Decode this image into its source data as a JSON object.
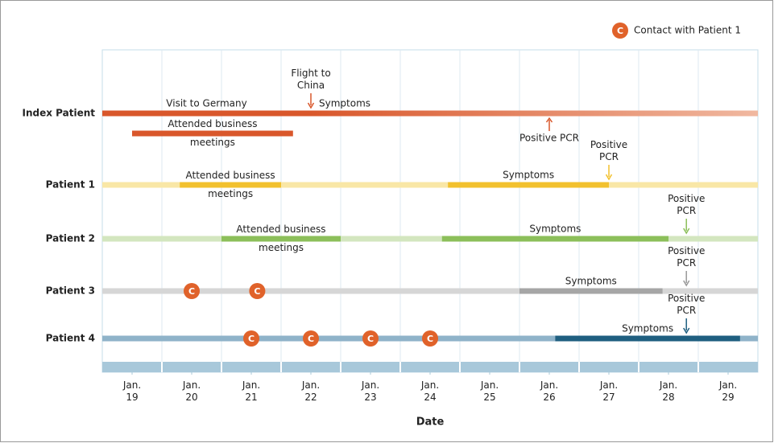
{
  "chart_data": {
    "type": "timeline",
    "x_label": "Date",
    "xlim": [
      18.5,
      29.5
    ],
    "xticks": [
      {
        "value": 19,
        "label": "Jan. 19"
      },
      {
        "value": 20,
        "label": "Jan. 20"
      },
      {
        "value": 21,
        "label": "Jan. 21"
      },
      {
        "value": 22,
        "label": "Jan. 22"
      },
      {
        "value": 23,
        "label": "Jan. 23"
      },
      {
        "value": 24,
        "label": "Jan. 24"
      },
      {
        "value": 25,
        "label": "Jan. 25"
      },
      {
        "value": 26,
        "label": "Jan. 26"
      },
      {
        "value": 27,
        "label": "Jan. 27"
      },
      {
        "value": 28,
        "label": "Jan. 28"
      },
      {
        "value": 29,
        "label": "Jan. 29"
      }
    ],
    "legend": {
      "label": "Contact with Patient 1",
      "marker": "C",
      "color": "#e0622a",
      "position": "top-right"
    },
    "rows": [
      {
        "name": "Index Patient",
        "color": "#d9572b",
        "base_color": "#f0b8a0",
        "bars": [
          {
            "label": "Visit to Germany",
            "start": 18.5,
            "end": 22.0,
            "lane": 0
          },
          {
            "label": "Symptoms",
            "start": 22.0,
            "end": 29.5,
            "lane": 0,
            "fade": true
          },
          {
            "label": "Attended business meetings",
            "start": 19.0,
            "end": 21.7,
            "lane": 1
          }
        ],
        "events": [
          {
            "label": "Flight to China",
            "x": 22.0,
            "direction": "down"
          },
          {
            "label": "Positive PCR",
            "x": 26.0,
            "direction": "up"
          }
        ],
        "contacts": []
      },
      {
        "name": "Patient 1",
        "color": "#f2c12e",
        "base_color": "#f9e7a6",
        "bars": [
          {
            "label": "Attended business meetings",
            "start": 19.8,
            "end": 21.5,
            "lane": 0
          },
          {
            "label": "Symptoms",
            "start": 24.3,
            "end": 27.0,
            "lane": 0
          }
        ],
        "events": [
          {
            "label": "Positive PCR",
            "x": 27.0,
            "direction": "down"
          }
        ],
        "contacts": []
      },
      {
        "name": "Patient 2",
        "color": "#8cbf5a",
        "base_color": "#d3e6bf",
        "bars": [
          {
            "label": "Attended business meetings",
            "start": 20.5,
            "end": 22.5,
            "lane": 0
          },
          {
            "label": "Symptoms",
            "start": 24.2,
            "end": 28.0,
            "lane": 0
          }
        ],
        "events": [
          {
            "label": "Positive PCR",
            "x": 28.3,
            "direction": "down"
          }
        ],
        "contacts": []
      },
      {
        "name": "Patient 3",
        "color": "#a6a6a6",
        "base_color": "#d6d6d6",
        "bars": [
          {
            "label": "Symptoms",
            "start": 25.5,
            "end": 27.9,
            "lane": 0
          }
        ],
        "events": [
          {
            "label": "Positive PCR",
            "x": 28.3,
            "direction": "down"
          }
        ],
        "contacts": [
          20.0,
          21.1
        ]
      },
      {
        "name": "Patient 4",
        "color": "#1f5f80",
        "base_color": "#8fb3c9",
        "bars": [
          {
            "label": "Symptoms",
            "start": 26.1,
            "end": 29.2,
            "lane": 0
          }
        ],
        "events": [
          {
            "label": "Positive PCR",
            "x": 28.3,
            "direction": "down"
          }
        ],
        "contacts": [
          21.0,
          22.0,
          23.0,
          24.0
        ]
      }
    ]
  }
}
